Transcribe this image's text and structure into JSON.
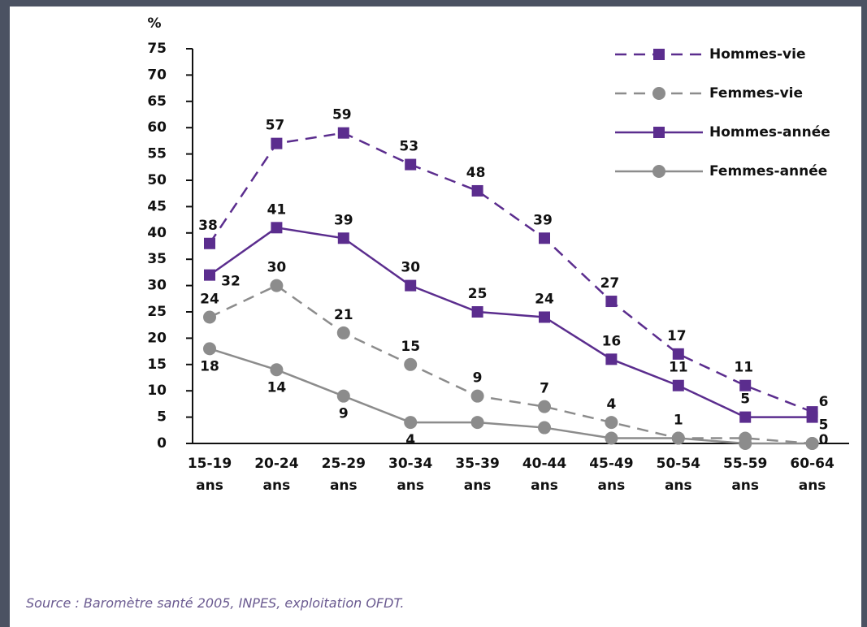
{
  "chart_data": {
    "type": "line",
    "y_axis_label": "%",
    "categories": [
      "15-19 ans",
      "20-24 ans",
      "25-29 ans",
      "30-34 ans",
      "35-39 ans",
      "40-44 ans",
      "45-49 ans",
      "50-54 ans",
      "55-59 ans",
      "60-64 ans"
    ],
    "series": [
      {
        "name": "Hommes-vie",
        "color": "#5b2d8e",
        "dash": true,
        "marker": "square",
        "values": [
          38,
          57,
          59,
          53,
          48,
          39,
          27,
          17,
          11,
          6
        ],
        "value_labels": [
          38,
          57,
          59,
          53,
          48,
          39,
          27,
          17,
          11,
          6
        ]
      },
      {
        "name": "Femmes-vie",
        "color": "#8c8c8c",
        "dash": true,
        "marker": "circle",
        "values": [
          24,
          30,
          21,
          15,
          9,
          7,
          4,
          1,
          1,
          0
        ],
        "value_labels": [
          24,
          30,
          21,
          15,
          9,
          7,
          4,
          1,
          null,
          null
        ]
      },
      {
        "name": "Hommes-année",
        "color": "#5b2d8e",
        "dash": false,
        "marker": "square",
        "values": [
          32,
          41,
          39,
          30,
          25,
          24,
          16,
          11,
          5,
          5
        ],
        "value_labels": [
          32,
          41,
          39,
          30,
          25,
          24,
          16,
          11,
          5,
          5
        ]
      },
      {
        "name": "Femmes-année",
        "color": "#8c8c8c",
        "dash": false,
        "marker": "circle",
        "values": [
          18,
          14,
          9,
          4,
          4,
          3,
          1,
          1,
          0,
          0
        ],
        "value_labels": [
          18,
          14,
          9,
          4,
          null,
          null,
          null,
          null,
          null,
          0
        ]
      }
    ],
    "ylim": [
      0,
      75
    ],
    "yticks": [
      0,
      5,
      10,
      15,
      20,
      25,
      30,
      35,
      40,
      45,
      50,
      55,
      60,
      65,
      70,
      75
    ],
    "legend": "top-right",
    "source": "Source : Baromètre santé 2005, INPES, exploitation OFDT."
  }
}
